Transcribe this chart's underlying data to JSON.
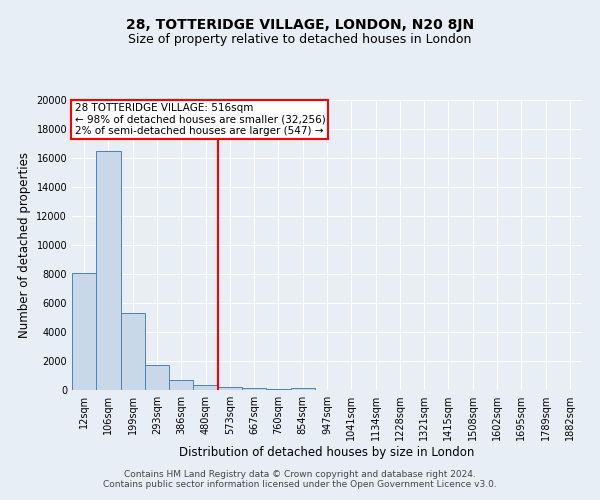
{
  "title": "28, TOTTERIDGE VILLAGE, LONDON, N20 8JN",
  "subtitle": "Size of property relative to detached houses in London",
  "xlabel": "Distribution of detached houses by size in London",
  "ylabel": "Number of detached properties",
  "bar_categories": [
    "12sqm",
    "106sqm",
    "199sqm",
    "293sqm",
    "386sqm",
    "480sqm",
    "573sqm",
    "667sqm",
    "760sqm",
    "854sqm",
    "947sqm",
    "1041sqm",
    "1134sqm",
    "1228sqm",
    "1321sqm",
    "1415sqm",
    "1508sqm",
    "1602sqm",
    "1695sqm",
    "1789sqm",
    "1882sqm"
  ],
  "bar_values": [
    8050,
    16500,
    5300,
    1750,
    700,
    350,
    200,
    150,
    100,
    150,
    0,
    0,
    0,
    0,
    0,
    0,
    0,
    0,
    0,
    0,
    0
  ],
  "bar_color": "#c8d8e8",
  "bar_edge_color": "#5080b0",
  "vline_x": 5.5,
  "vline_color": "red",
  "annotation_text": "28 TOTTERIDGE VILLAGE: 516sqm\n← 98% of detached houses are smaller (32,256)\n2% of semi-detached houses are larger (547) →",
  "annotation_box_color": "white",
  "annotation_box_edge_color": "red",
  "ylim": [
    0,
    20000
  ],
  "yticks": [
    0,
    2000,
    4000,
    6000,
    8000,
    10000,
    12000,
    14000,
    16000,
    18000,
    20000
  ],
  "background_color": "#e8eef5",
  "plot_bg_color": "#e8eef5",
  "grid_color": "white",
  "footer_line1": "Contains HM Land Registry data © Crown copyright and database right 2024.",
  "footer_line2": "Contains public sector information licensed under the Open Government Licence v3.0.",
  "title_fontsize": 10,
  "subtitle_fontsize": 9,
  "axis_label_fontsize": 8.5,
  "tick_fontsize": 7,
  "annotation_fontsize": 7.5,
  "footer_fontsize": 6.5
}
